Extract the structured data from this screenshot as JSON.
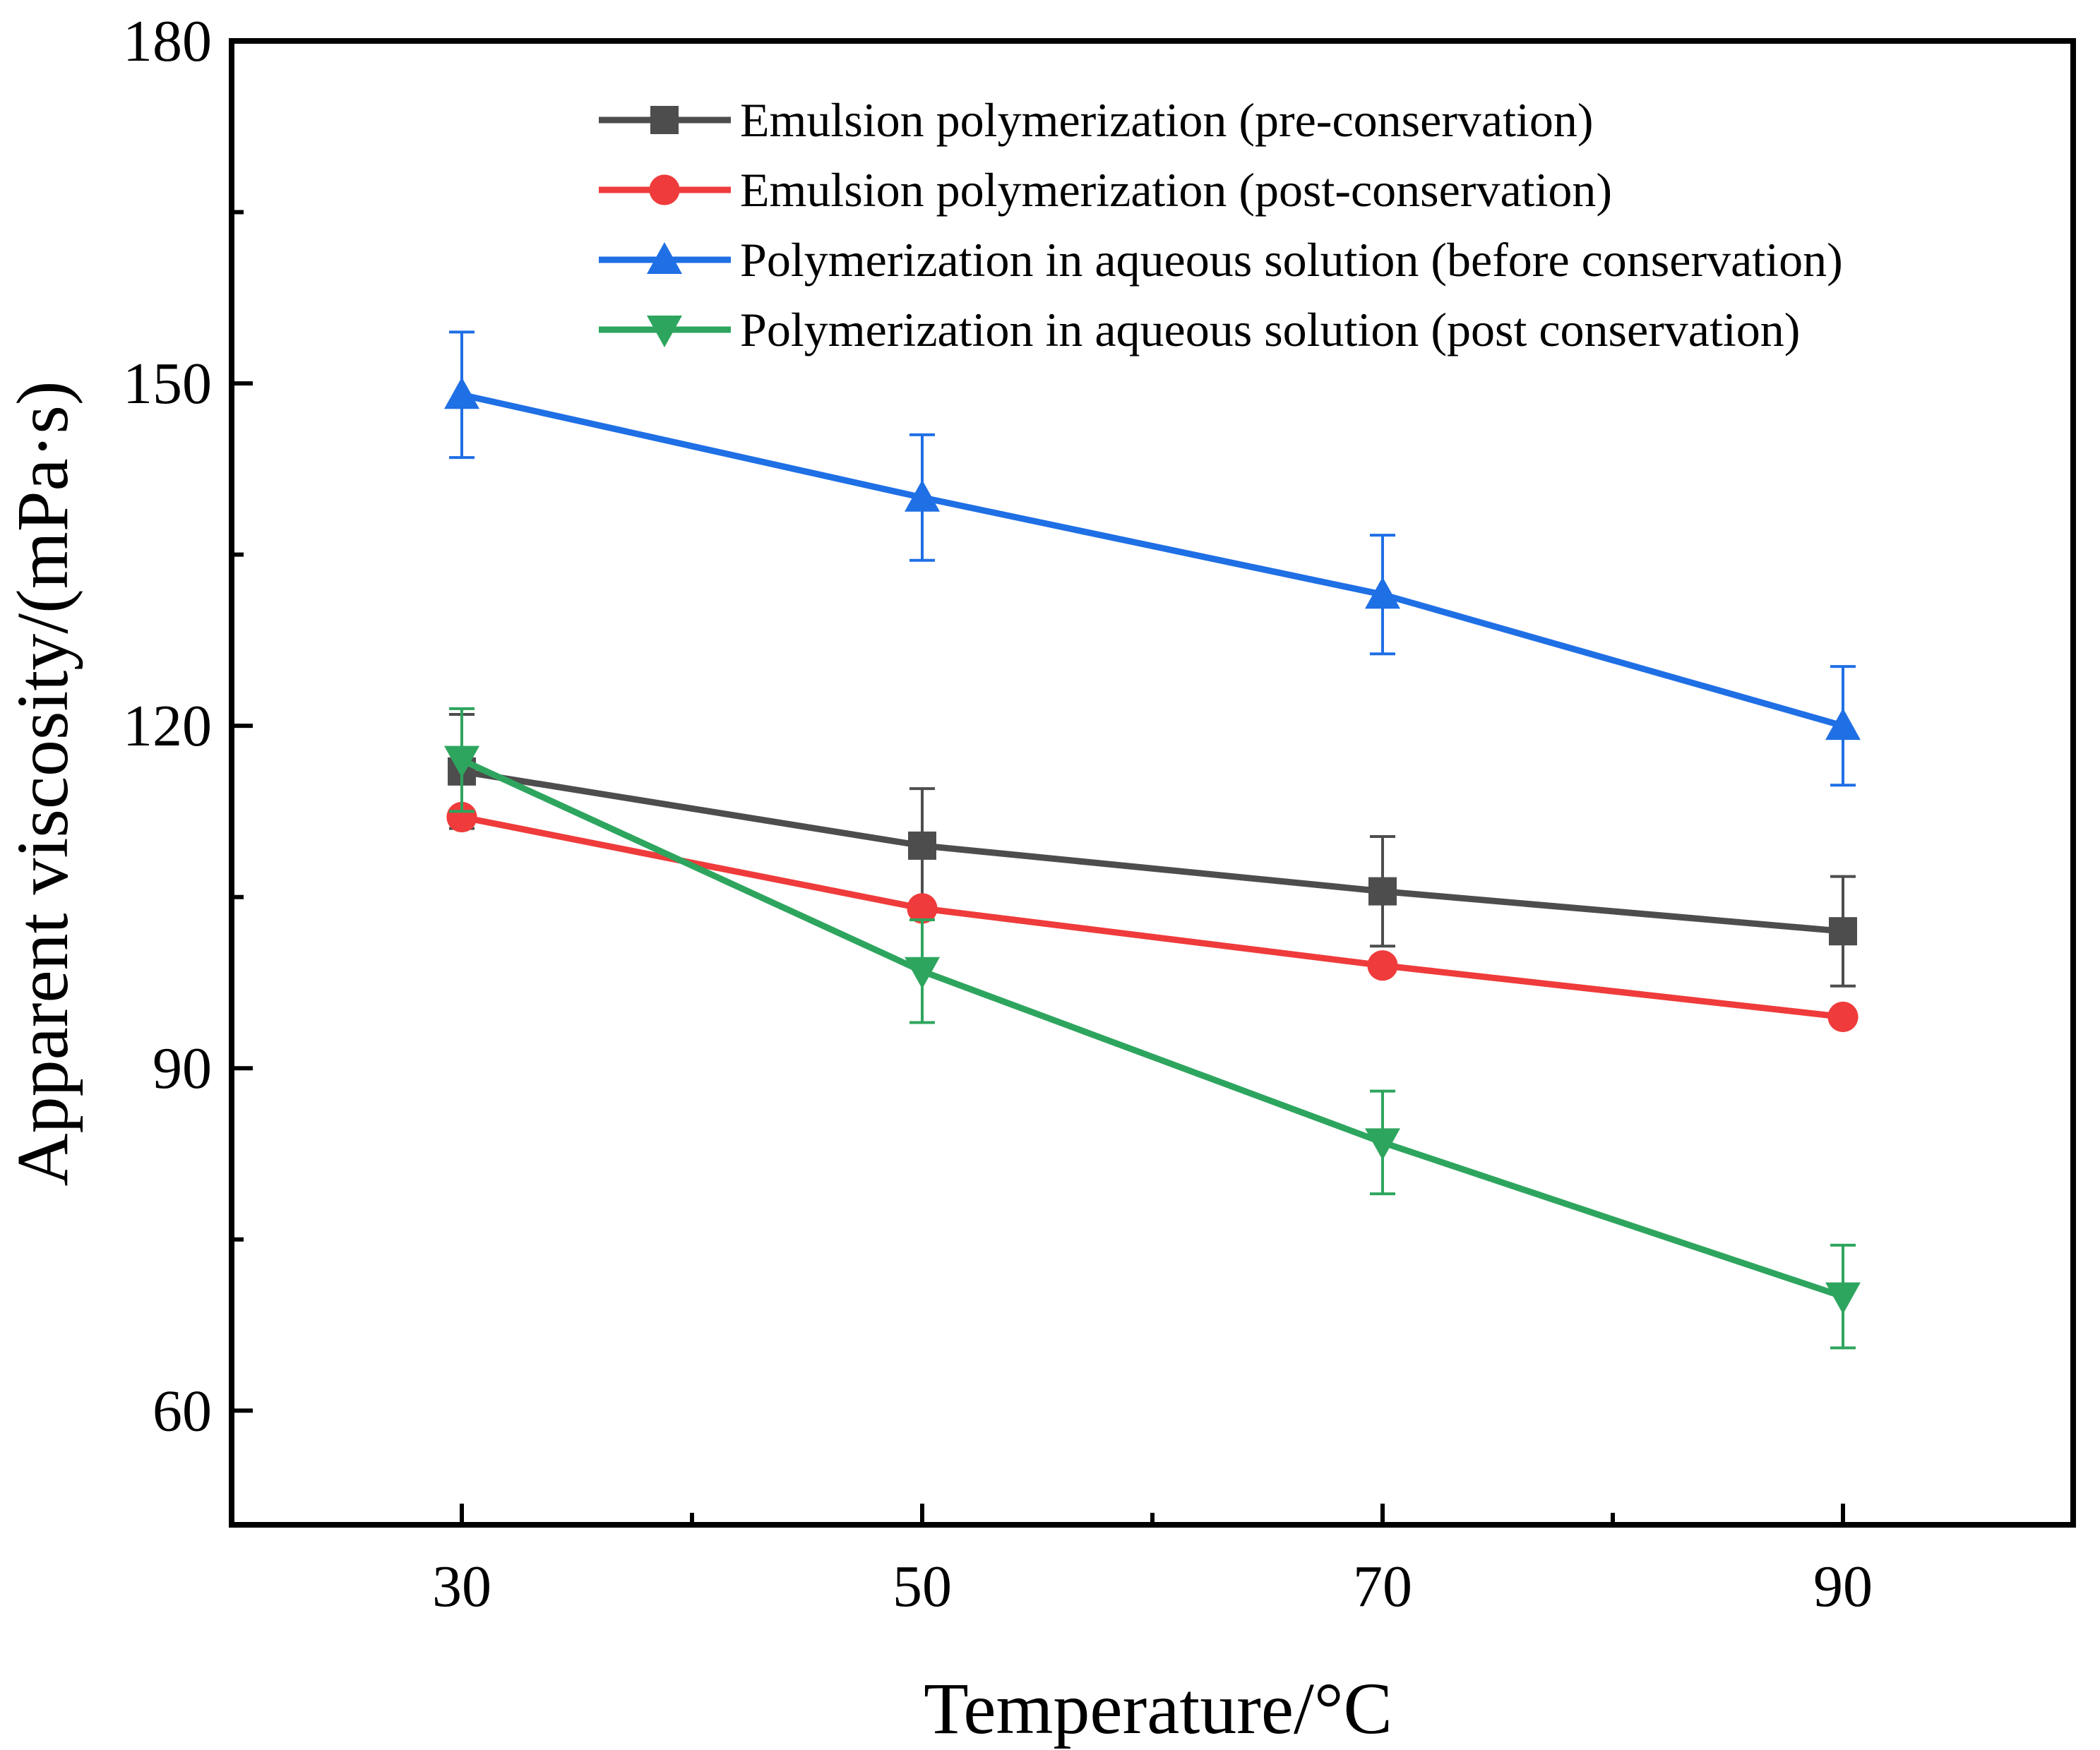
{
  "chart_data": {
    "type": "line",
    "xlabel": "Temperature/°C",
    "ylabel": "Apparent viscosity/(mPa·s)",
    "xlim": [
      20,
      100
    ],
    "ylim": [
      50,
      180
    ],
    "x_ticks": [
      30,
      50,
      70,
      90
    ],
    "y_ticks": [
      60,
      90,
      120,
      150,
      180
    ],
    "grid": false,
    "legend_position": "top-right",
    "x": [
      30,
      50,
      70,
      90
    ],
    "series": [
      {
        "name": "Emulsion polymerization (pre-conservation)",
        "color": "#4d4d4d",
        "marker": "square",
        "values": [
          116,
          109.5,
          105.5,
          102
        ],
        "errors": [
          5,
          5,
          4.8,
          4.8
        ]
      },
      {
        "name": "Emulsion polymerization (post-conservation)",
        "color": "#ef3b3b",
        "marker": "circle",
        "values": [
          112,
          104,
          99,
          94.5
        ],
        "errors": [
          0,
          0,
          0,
          0
        ]
      },
      {
        "name": "Polymerization in aqueous solution (before conservation)",
        "color": "#1f6fe5",
        "marker": "triangle-up",
        "values": [
          149,
          140,
          131.5,
          120
        ],
        "errors": [
          5.5,
          5.5,
          5.2,
          5.2
        ]
      },
      {
        "name": "Polymerization in aqueous solution (post conservation)",
        "color": "#2ea55e",
        "marker": "triangle-down",
        "values": [
          117,
          98.5,
          83.5,
          70
        ],
        "errors": [
          4.5,
          4.5,
          4.5,
          4.5
        ]
      }
    ]
  }
}
